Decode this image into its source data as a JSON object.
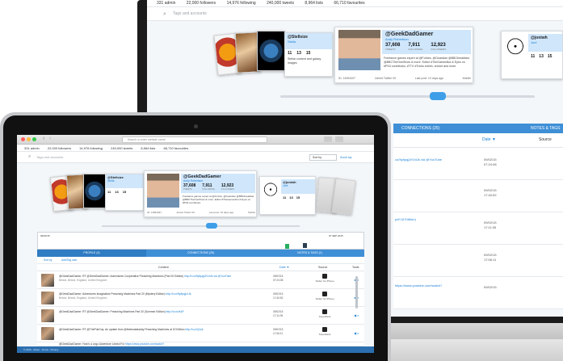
{
  "monitor": {
    "stats": [
      "331 admin",
      "22,000 followers",
      "14,976 following",
      "240,000 tweets",
      "8,964 lists",
      "66,710 favourites"
    ],
    "search_placeholder": "Tags and accounts",
    "featured": {
      "handle": "@GeekDadGamer",
      "name": "Andy Robertson",
      "stats": [
        {
          "value": "37,608",
          "label": "TWEETS"
        },
        {
          "value": "7,911",
          "label": "FOLLOWING"
        },
        {
          "value": "12,923",
          "label": "FOLLOWERS"
        }
      ],
      "bio": "Freelance games expert at @Forbes, @Guardian @BBCbreakfast @BBCTheOneShow & more. Editor #TheGamesNut & Eyes on #PS4 contributor, #TTX #Tricks edmin, cricket and more.",
      "joined": "Joined Twitter 09",
      "last_post": "Last post: 10 days ago",
      "id": "ID: 14954497",
      "source": "Mobile"
    },
    "left_card": {
      "handle": "@Stellsize",
      "name": "Stella",
      "nums": [
        "11",
        "13",
        "15"
      ],
      "bio": "Stellar content and galaxy images"
    },
    "right_card": {
      "handle": "@joniwh",
      "name": "Joni",
      "nums": [
        "11",
        "13",
        "15"
      ]
    },
    "tabs": {
      "connections": "CONNECTIONS (25)",
      "notes": "NOTES & TAGS (1)"
    },
    "date_col": "Date ▼",
    "source_col": "Source",
    "rows": [
      {
        "link": "co/9y8pqj1KVdJk via @YouTube",
        "date": "09/02/15 07:24:08"
      },
      {
        "link": "",
        "date": "09/02/15 17:40:52"
      },
      {
        "link": "pdf 18 Edition)",
        "date": "09/02/15 17:11:05"
      },
      {
        "link": "",
        "date": "09/02/15 17:06:11"
      },
      {
        "link": "https://www.youtube.com/watch?",
        "date": "09/02/15"
      }
    ]
  },
  "laptop": {
    "url": "Search or enter website name",
    "stats": [
      "331 admin",
      "22,000 followers",
      "14,976 following",
      "240,000 tweets",
      "8,964 lists",
      "66,710 favourites"
    ],
    "search_placeholder": "Tags and accounts",
    "sort_label": "Sort by",
    "scroll_label": "Scroll top",
    "featured": {
      "handle": "@GeekDadGamer",
      "name": "Andy Robertson",
      "stats": [
        {
          "value": "37,608",
          "label": "TWEETS"
        },
        {
          "value": "7,911",
          "label": "FOLLOWING"
        },
        {
          "value": "12,923",
          "label": "FOLLOWERS"
        }
      ],
      "bio": "Freelance games expert at @Forbes, @Guardian @BBCbreakfast @BBCTheOneShow & more. Editor #TheGamesNut & Eyes on #PS4 contributor.",
      "joined": "Joined Twitter 09",
      "last_post": "Last post: 10 days ago",
      "id": "ID: 14954497",
      "source": "Mobile"
    },
    "left_card": {
      "handle": "@Stellsize",
      "name": "Stella",
      "nums": [
        "11",
        "13",
        "15"
      ]
    },
    "right_card": {
      "handle": "@joniwh",
      "name": "Joni",
      "nums": [
        "11",
        "13",
        "15"
      ]
    },
    "timeline": {
      "start": "09/02/15",
      "end": "07 SEP 2015"
    },
    "tabs": [
      "PROFILE (0)",
      "CONNECTIONS (25)",
      "NOTES & TAGS (1)"
    ],
    "sub_label": "Sort by",
    "filter_label": "Add/Tag user",
    "columns": {
      "content": "Content",
      "date": "Date ▼",
      "source": "Source",
      "tools": "Tools"
    },
    "rows": [
      {
        "text": "@GeekDadGamer: RT @GeekDadGamer: Adventures Cooperative Preaching Machines (Part 20 Edition) ",
        "link": "http://t.co/9y8pqj1KVdJk via @YouTube",
        "meta": "Bristol, Bristol, England, United Kingdom",
        "date": "09/02/15 07:24:08",
        "source": "Twitter for iPhone"
      },
      {
        "text": "@GeekDadGamer: Adventures Imaginative Preaching Machines Part 20 (Mystery Edition) ",
        "link": "http://t.co/9y8pqjLhJk",
        "meta": "Bristol, Bristol, England, United Kingdom",
        "date": "09/02/15 17:40:52",
        "source": "Twitter for iPhone"
      },
      {
        "text": "@GeekDadGamer: RT @GeekDadGamer: Preaching Machines Part 20 (Summer Edition) ",
        "link": "http://t.co/xKsP",
        "meta": "",
        "date": "09/02/15 17:11:05",
        "source": "TweetDeck"
      },
      {
        "text": "@GeekDadGamer: RT @ThePubGuy: An update from @thebeastdaddy Preaching Machines at 20 Edition ",
        "link": "http://t.co/Q1sk",
        "meta": "",
        "date": "09/02/15 17:06:11",
        "source": "TweetDeck"
      },
      {
        "text": "@GeekDadGamer: How's a Lego Adventure Linked For ",
        "link": "https://www.youtube.com/watch?",
        "meta": "#TheBuildJam",
        "date": "09/02/15 17:01:20",
        "source": "Twitter Web"
      }
    ],
    "footer": "© 2015 · About · Terms · Privacy"
  },
  "colors": {
    "accent": "#3f8fd6",
    "card_head": "#cfe6fb",
    "link": "#1a7fd5"
  }
}
